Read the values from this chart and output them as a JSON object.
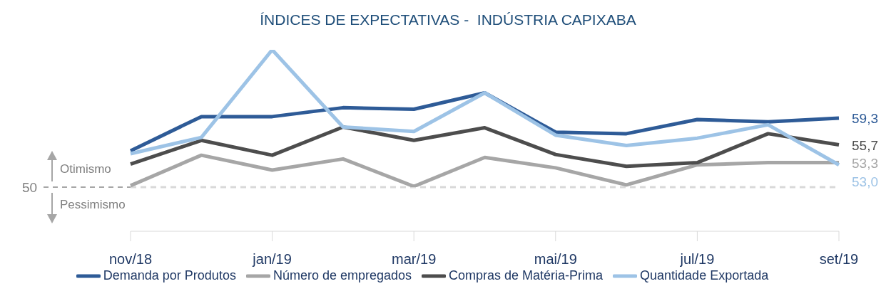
{
  "chart_data": {
    "type": "line",
    "title": "ÍNDICES DE EXPECTATIVAS -  INDÚSTRIA CAPIXABA",
    "categories": [
      "nov/18",
      null,
      "jan/19",
      null,
      "mar/19",
      null,
      "mai/19",
      null,
      "jul/19",
      null,
      "set/19"
    ],
    "series": [
      {
        "name": "Demanda por Produtos",
        "color": "#2e5b97",
        "values": [
          54.9,
          59.5,
          59.5,
          60.7,
          60.5,
          62.7,
          57.4,
          57.2,
          59.1,
          58.8,
          59.3
        ],
        "value_labels": [
          null,
          null,
          null,
          null,
          null,
          null,
          null,
          null,
          null,
          null,
          "59,3"
        ]
      },
      {
        "name": "Número de empregados",
        "color": "#a6a6a6",
        "values": [
          50.2,
          54.3,
          52.3,
          53.8,
          50.1,
          54.0,
          52.6,
          50.3,
          53.0,
          53.3,
          53.3
        ],
        "value_labels": [
          null,
          null,
          null,
          null,
          null,
          null,
          null,
          null,
          null,
          null,
          "53,3"
        ]
      },
      {
        "name": "Compras de Matéria-Prima",
        "color": "#4d4d4d",
        "values": [
          53.1,
          56.3,
          54.3,
          58.1,
          56.3,
          58.0,
          54.4,
          52.8,
          53.3,
          57.2,
          55.7
        ],
        "value_labels": [
          null,
          null,
          null,
          null,
          null,
          null,
          null,
          null,
          null,
          null,
          "55,7"
        ]
      },
      {
        "name": "Quantidade Exportada",
        "color": "#9dc3e6",
        "values": [
          54.5,
          56.7,
          68.5,
          58.1,
          57.5,
          62.7,
          57.0,
          55.6,
          56.6,
          58.4,
          53.0
        ],
        "value_labels": [
          null,
          null,
          null,
          null,
          null,
          null,
          null,
          null,
          null,
          null,
          "53,0"
        ]
      }
    ],
    "ref_lines": [
      {
        "axis": "y",
        "value": 50,
        "label": "50",
        "color": "#d9d9d9",
        "line_style": "dashed"
      }
    ],
    "annotations": [
      "Otimismo",
      "Pessimismo"
    ],
    "legend": "bottom",
    "marker": "none",
    "line_style": "solid"
  }
}
